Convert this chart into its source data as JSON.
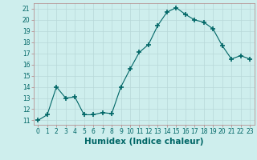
{
  "x": [
    0,
    1,
    2,
    3,
    4,
    5,
    6,
    7,
    8,
    9,
    10,
    11,
    12,
    13,
    14,
    15,
    16,
    17,
    18,
    19,
    20,
    21,
    22,
    23
  ],
  "y": [
    11,
    11.5,
    14,
    13,
    13.1,
    11.5,
    11.5,
    11.7,
    11.6,
    14,
    15.6,
    17.1,
    17.8,
    19.5,
    20.7,
    21.1,
    20.5,
    20,
    19.8,
    19.2,
    17.7,
    16.5,
    16.8,
    16.5
  ],
  "line_color": "#006666",
  "marker": "+",
  "marker_size": 4,
  "bg_color": "#ceeeed",
  "grid_color": "#b8d8d8",
  "tick_color": "#b08080",
  "xlabel": "Humidex (Indice chaleur)",
  "xlabel_color": "#006666",
  "xlabel_fontsize": 7.5,
  "ylabel_ticks": [
    11,
    12,
    13,
    14,
    15,
    16,
    17,
    18,
    19,
    20,
    21
  ],
  "xlim": [
    -0.5,
    23.5
  ],
  "ylim": [
    10.6,
    21.5
  ],
  "xtick_labels": [
    "0",
    "1",
    "2",
    "3",
    "4",
    "5",
    "6",
    "7",
    "8",
    "9",
    "10",
    "11",
    "12",
    "13",
    "14",
    "15",
    "16",
    "17",
    "18",
    "19",
    "20",
    "21",
    "22",
    "23"
  ],
  "tick_fontsize": 5.5
}
